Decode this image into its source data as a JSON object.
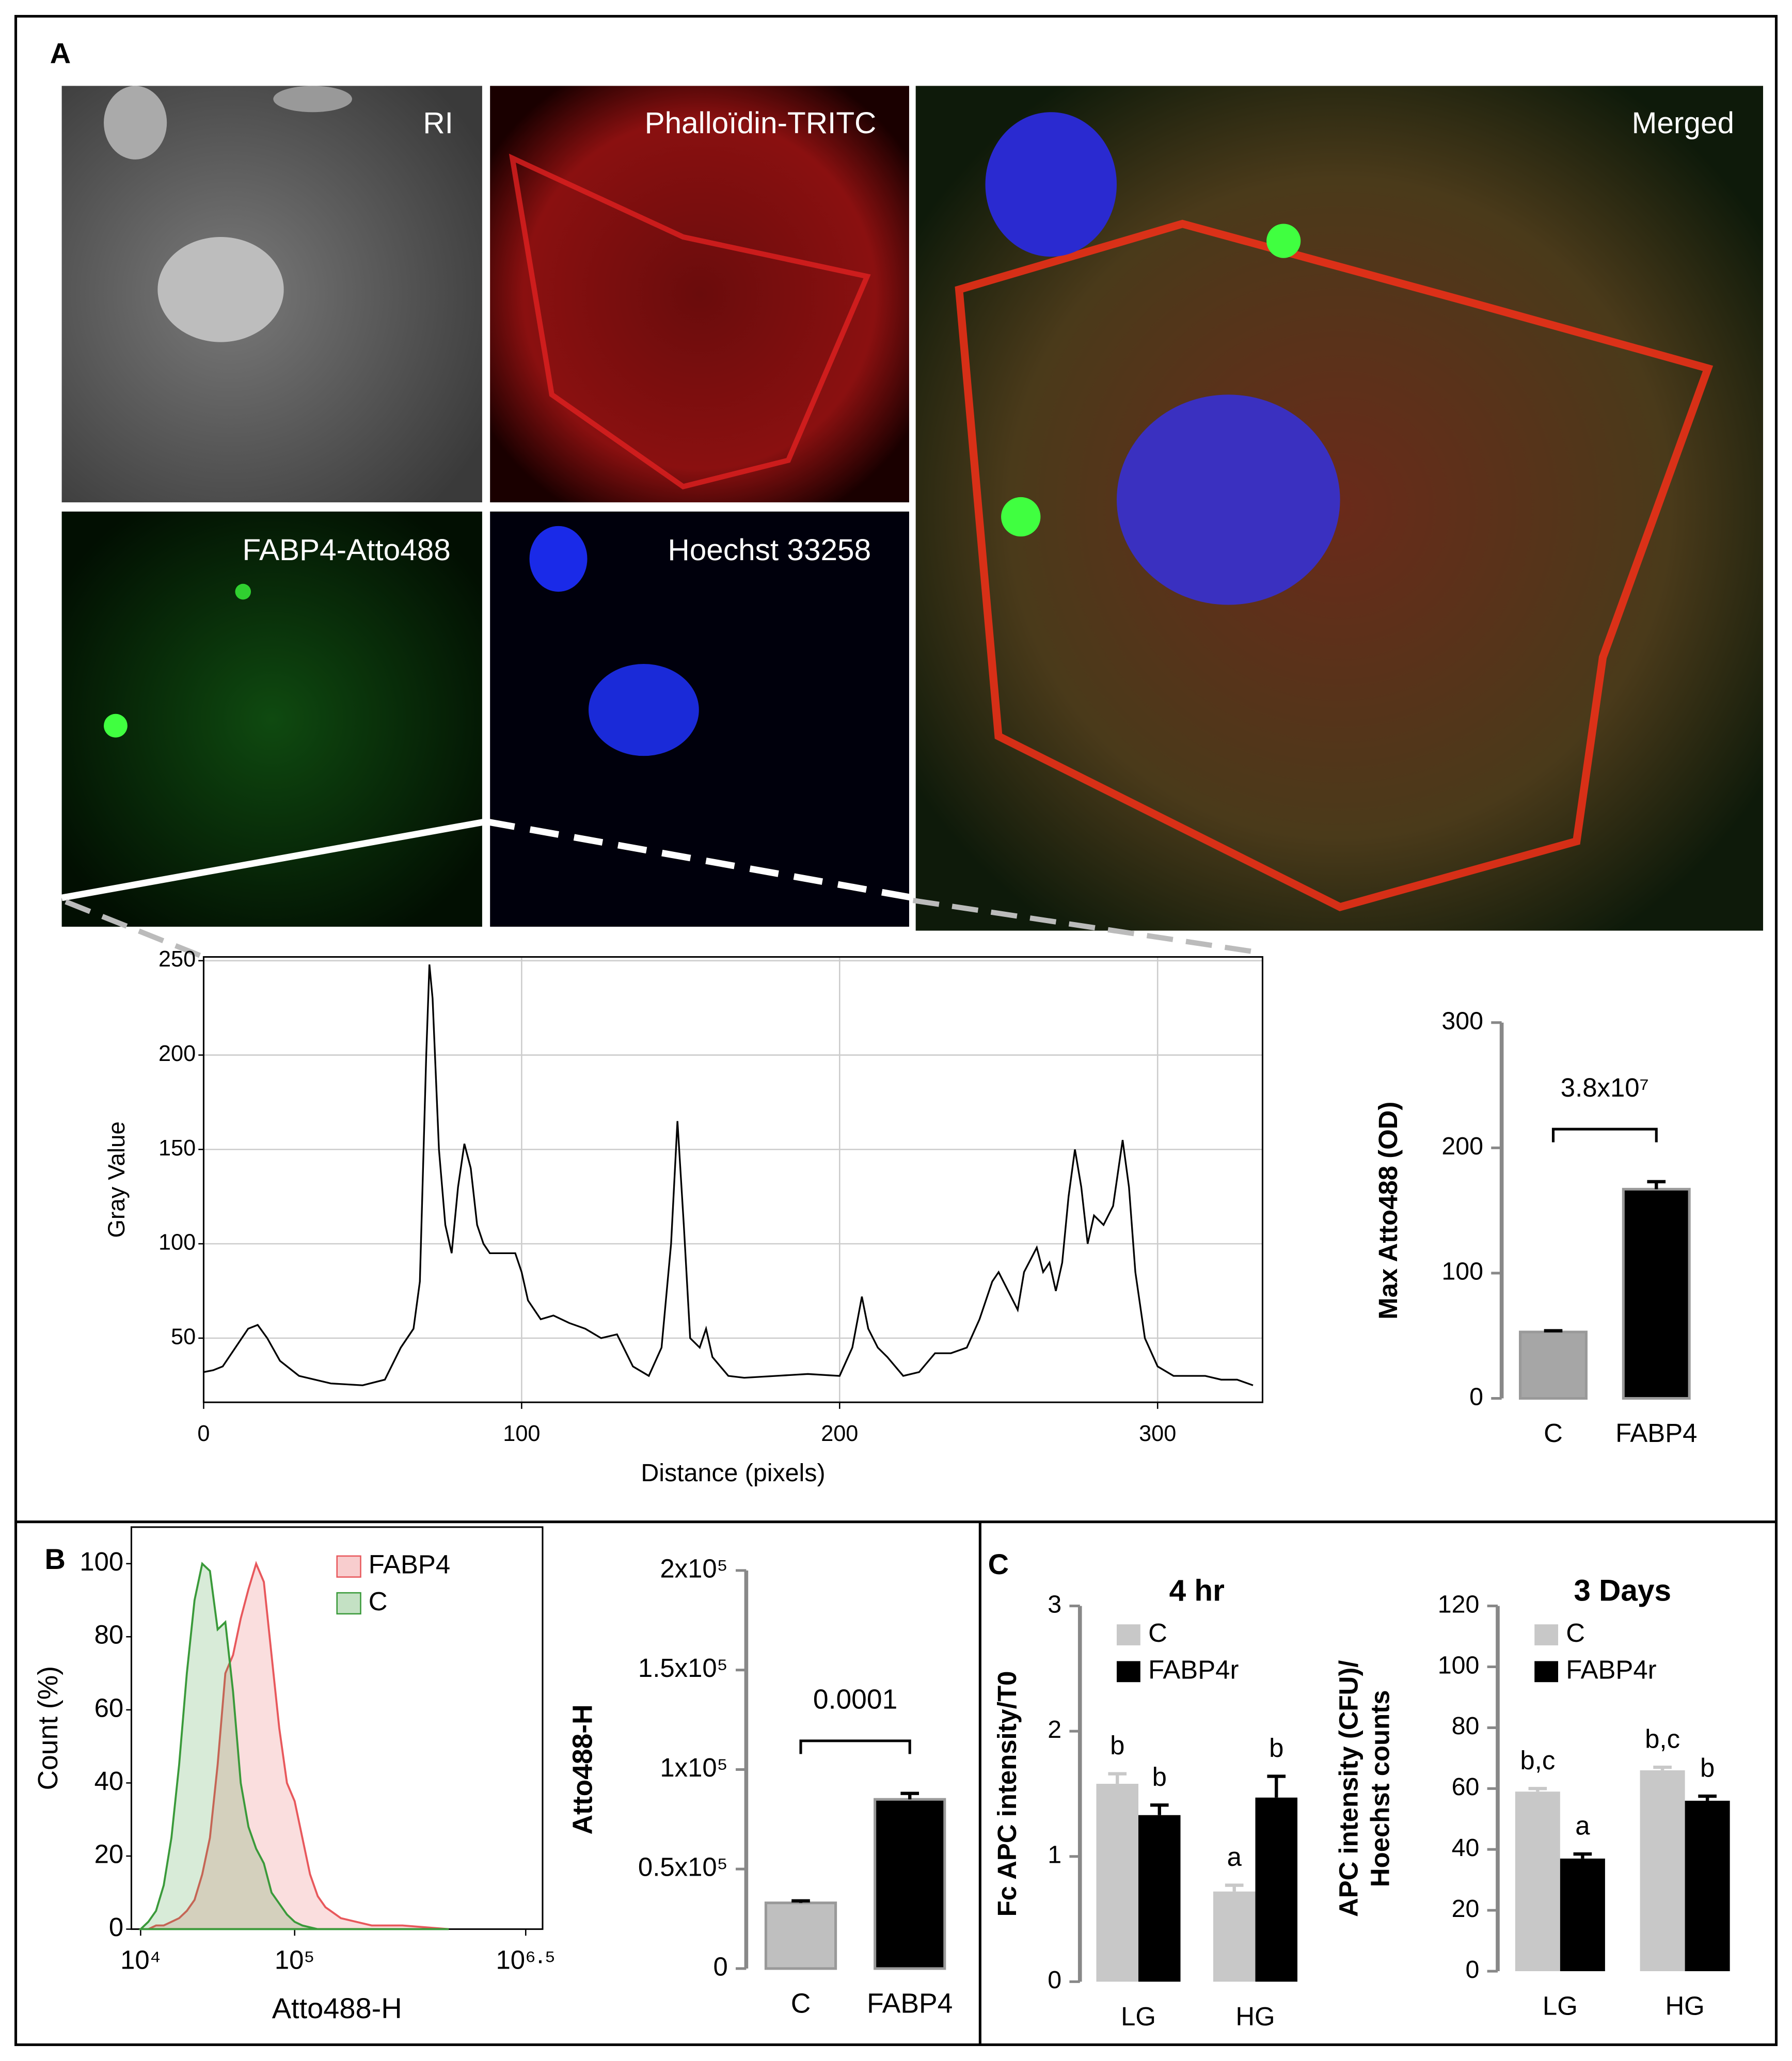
{
  "panels": [
    "A",
    "B",
    "C"
  ],
  "images": [
    {
      "label": "RI"
    },
    {
      "label": "Phalloïdin-TRITC"
    },
    {
      "label": "FABP4-Atto488"
    },
    {
      "label": "Hoechst 33258"
    },
    {
      "label": "Merged"
    }
  ],
  "chart_data": [
    {
      "type": "line",
      "xlabel": "Distance (pixels)",
      "ylabel": "Gray Value",
      "x": [
        0,
        3,
        6,
        10,
        14,
        17,
        20,
        24,
        30,
        40,
        50,
        57,
        62,
        66,
        68,
        70,
        71,
        72,
        74,
        76,
        78,
        80,
        82,
        84,
        86,
        88,
        90,
        94,
        98,
        100,
        102,
        106,
        110,
        115,
        120,
        125,
        130,
        135,
        140,
        144,
        147,
        149,
        151,
        153,
        156,
        158,
        160,
        165,
        170,
        180,
        190,
        200,
        204,
        207,
        209,
        212,
        215,
        220,
        225,
        230,
        235,
        240,
        244,
        248,
        250,
        253,
        256,
        258,
        262,
        264,
        266,
        268,
        270,
        272,
        274,
        276,
        278,
        280,
        283,
        286,
        289,
        291,
        293,
        296,
        300,
        305,
        315,
        320,
        325,
        330
      ],
      "values": [
        32,
        33,
        35,
        45,
        55,
        57,
        50,
        38,
        30,
        26,
        25,
        28,
        45,
        55,
        80,
        200,
        248,
        230,
        150,
        110,
        95,
        130,
        153,
        140,
        110,
        100,
        95,
        95,
        95,
        85,
        70,
        60,
        62,
        58,
        55,
        50,
        52,
        35,
        30,
        45,
        100,
        165,
        110,
        50,
        45,
        55,
        40,
        30,
        29,
        30,
        31,
        30,
        45,
        72,
        55,
        45,
        40,
        30,
        32,
        42,
        42,
        45,
        60,
        80,
        85,
        75,
        65,
        85,
        98,
        85,
        90,
        75,
        90,
        125,
        150,
        130,
        100,
        115,
        110,
        120,
        155,
        130,
        85,
        50,
        35,
        30,
        30,
        28,
        28,
        25
      ],
      "color": "#000000",
      "xlim": [
        0,
        333
      ],
      "ylim": [
        16,
        252
      ],
      "xticks": [
        0,
        100,
        200,
        300
      ],
      "yticks": [
        50,
        100,
        150,
        200,
        250
      ],
      "grid": true,
      "frame": true
    },
    {
      "type": "bar",
      "ylabel": "Max Atto488 (OD)",
      "categories": [
        "C",
        "FABP4"
      ],
      "values": [
        53,
        167
      ],
      "errors": [
        1,
        6
      ],
      "colors": [
        "#a6a6a6",
        "#000000"
      ],
      "ylim": [
        0,
        300
      ],
      "yticks": [
        0,
        100,
        200,
        300
      ],
      "annotation": "3.8x10⁷"
    },
    {
      "type": "area",
      "xlabel": "Atto488-H",
      "ylabel": "Count (%)",
      "xscale": "log",
      "x": [
        10000,
        11220,
        12589,
        14125,
        15849,
        17783,
        19953,
        22387,
        25119,
        28184,
        31623,
        35481,
        39811,
        44668,
        50119,
        56234,
        63096,
        70795,
        79433,
        89125,
        100000,
        112202,
        125893,
        141254,
        158489,
        199526,
        251189,
        316228,
        501187,
        1000000
      ],
      "series": [
        {
          "name": "FABP4",
          "color": "#e8585c",
          "values": [
            0,
            0,
            1,
            1,
            2,
            3,
            5,
            8,
            15,
            25,
            45,
            70,
            75,
            85,
            93,
            100,
            95,
            75,
            55,
            40,
            35,
            25,
            15,
            9,
            6,
            3,
            2,
            1,
            1,
            0
          ]
        },
        {
          "name": "C",
          "color": "#3a9a3a",
          "values": [
            0,
            2,
            5,
            12,
            25,
            45,
            70,
            90,
            100,
            98,
            82,
            84,
            65,
            40,
            28,
            22,
            18,
            10,
            7,
            4,
            2,
            1,
            0.5,
            0,
            0,
            0,
            0,
            0,
            0,
            0
          ]
        }
      ],
      "xlim": [
        8710,
        4070000
      ],
      "ylim": [
        0,
        110
      ],
      "xticks": [
        {
          "value": 10000,
          "label": "10⁴"
        },
        {
          "value": 100000,
          "label": "10⁵"
        },
        {
          "value": 3162278,
          "label": "10⁶·⁵"
        }
      ],
      "yticks": [
        0,
        20,
        40,
        60,
        80,
        100
      ],
      "legend": "upper right",
      "frame": true
    },
    {
      "type": "bar",
      "ylabel": "Atto488-H",
      "categories": [
        "C",
        "FABP4"
      ],
      "values": [
        33000,
        85000
      ],
      "errors": [
        1000,
        3000
      ],
      "colors": [
        "#bfbfbf",
        "#000000"
      ],
      "ylim": [
        0,
        200000
      ],
      "yticks": [
        0,
        {
          "value": 50000,
          "label": "0.5x10⁵"
        },
        {
          "value": 100000,
          "label": "1x10⁵"
        },
        {
          "value": 150000,
          "label": "1.5x10⁵"
        },
        {
          "value": 200000,
          "label": "2x10⁵"
        }
      ],
      "annotation": "0.0001"
    },
    {
      "type": "grouped_bar",
      "title": "4 hr",
      "ylabel": "Fc APC intensity/T0",
      "categories": [
        "LG",
        "HG"
      ],
      "series": [
        {
          "name": "C",
          "color": "#c8c8c8",
          "values": [
            1.58,
            0.72
          ],
          "errors": [
            0.08,
            0.05
          ],
          "letters": [
            "b",
            "a"
          ]
        },
        {
          "name": "FABP4r",
          "color": "#000000",
          "values": [
            1.33,
            1.47
          ],
          "errors": [
            0.08,
            0.17
          ],
          "letters": [
            "b",
            "b"
          ]
        }
      ],
      "ylim": [
        0,
        3
      ],
      "yticks": [
        0,
        1,
        2,
        3
      ],
      "legend": "upper left"
    },
    {
      "type": "grouped_bar",
      "title": "3 Days",
      "ylabel": [
        "APC intensity (CFU)/",
        "Hoechst counts"
      ],
      "categories": [
        "LG",
        "HG"
      ],
      "series": [
        {
          "name": "C",
          "color": "#c8c8c8",
          "values": [
            59,
            66
          ],
          "errors": [
            1,
            1
          ],
          "letters": [
            "b,c",
            "b,c"
          ]
        },
        {
          "name": "FABP4r",
          "color": "#000000",
          "values": [
            37,
            56
          ],
          "errors": [
            1.5,
            1.5
          ],
          "letters": [
            "a",
            "b"
          ]
        }
      ],
      "ylim": [
        0,
        120
      ],
      "yticks": [
        0,
        20,
        40,
        60,
        80,
        100,
        120
      ],
      "legend": "upper left"
    }
  ]
}
